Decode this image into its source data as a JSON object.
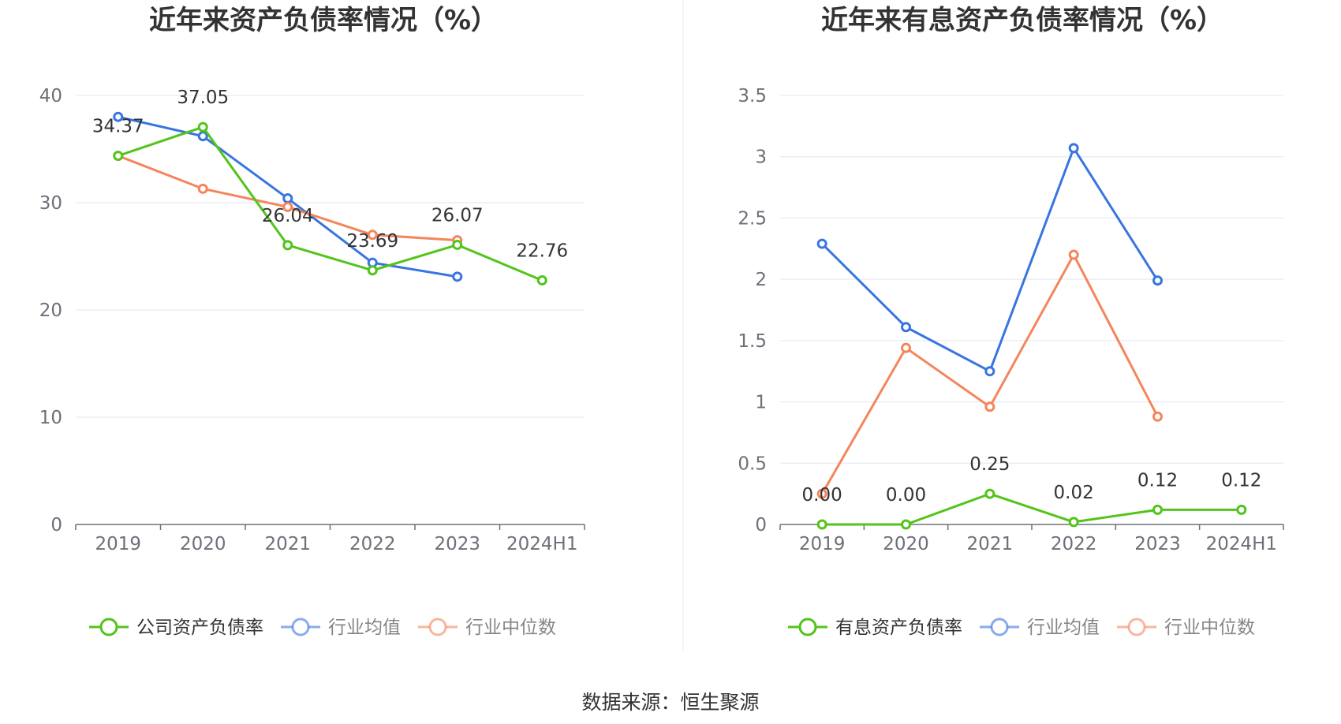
{
  "source_label": "数据来源：恒生聚源",
  "chart_data": [
    {
      "type": "line",
      "title": "近年来资产负债率情况（%）",
      "categories": [
        "2019",
        "2020",
        "2021",
        "2022",
        "2023",
        "2024H1"
      ],
      "ylim": [
        0,
        40
      ],
      "yticks": [
        0,
        10,
        20,
        30,
        40
      ],
      "ytick_labels": [
        "0",
        "10",
        "20",
        "30",
        "40"
      ],
      "grid": true,
      "series": [
        {
          "name": "公司资产负债率",
          "color": "#52c41a",
          "values": [
            34.37,
            37.05,
            26.04,
            23.69,
            26.07,
            22.76
          ],
          "labels": [
            "34.37",
            "37.05",
            "26.04",
            "23.69",
            "26.07",
            "22.76"
          ]
        },
        {
          "name": "行业均值",
          "color": "#3875e0",
          "values": [
            38.0,
            36.2,
            30.4,
            24.4,
            23.1,
            null
          ]
        },
        {
          "name": "行业中位数",
          "color": "#f5855b",
          "values": [
            34.37,
            31.3,
            29.6,
            27.0,
            26.5,
            null
          ]
        }
      ],
      "legend": [
        "公司资产负债率",
        "行业均值",
        "行业中位数"
      ]
    },
    {
      "type": "line",
      "title": "近年来有息资产负债率情况（%）",
      "categories": [
        "2019",
        "2020",
        "2021",
        "2022",
        "2023",
        "2024H1"
      ],
      "ylim": [
        0,
        3.5
      ],
      "yticks": [
        0,
        0.5,
        1,
        1.5,
        2,
        2.5,
        3,
        3.5
      ],
      "ytick_labels": [
        "0",
        "0.5",
        "1",
        "1.5",
        "2",
        "2.5",
        "3",
        "3.5"
      ],
      "grid": true,
      "series": [
        {
          "name": "有息资产负债率",
          "color": "#52c41a",
          "values": [
            0.0,
            0.0,
            0.25,
            0.02,
            0.12,
            0.12
          ],
          "labels": [
            "0.00",
            "0.00",
            "0.25",
            "0.02",
            "0.12",
            "0.12"
          ]
        },
        {
          "name": "行业均值",
          "color": "#3875e0",
          "values": [
            2.29,
            1.61,
            1.25,
            3.07,
            1.99,
            null
          ]
        },
        {
          "name": "行业中位数",
          "color": "#f5855b",
          "values": [
            0.25,
            1.44,
            0.96,
            2.2,
            0.88,
            null
          ]
        }
      ],
      "legend": [
        "有息资产负债率",
        "行业均值",
        "行业中位数"
      ]
    }
  ]
}
